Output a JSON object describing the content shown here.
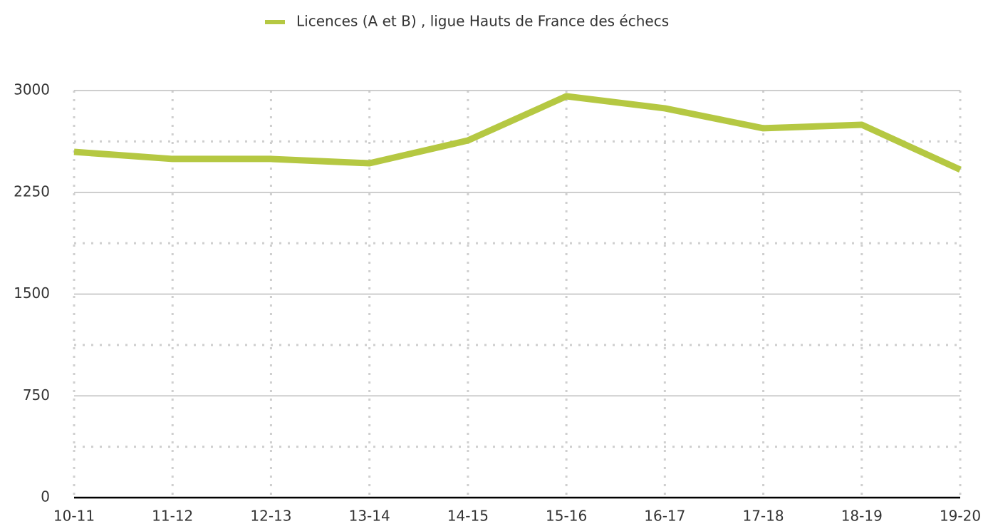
{
  "chart_data": {
    "type": "line",
    "categories": [
      "10-11",
      "11-12",
      "12-13",
      "13-14",
      "14-15",
      "15-16",
      "16-17",
      "17-18",
      "18-19",
      "19-20"
    ],
    "series": [
      {
        "name": "Licences (A et B) , ligue Hauts de France des échecs",
        "color": "#b5c842",
        "values": [
          2548,
          2496,
          2496,
          2464,
          2632,
          2958,
          2869,
          2722,
          2748,
          2417
        ]
      }
    ],
    "ylim": [
      0,
      3000
    ],
    "yticks": [
      0,
      750,
      1500,
      2250,
      3000
    ],
    "y_minor_ticks": [
      375,
      1125,
      1875,
      2625
    ],
    "grid": true,
    "legend": "top"
  }
}
